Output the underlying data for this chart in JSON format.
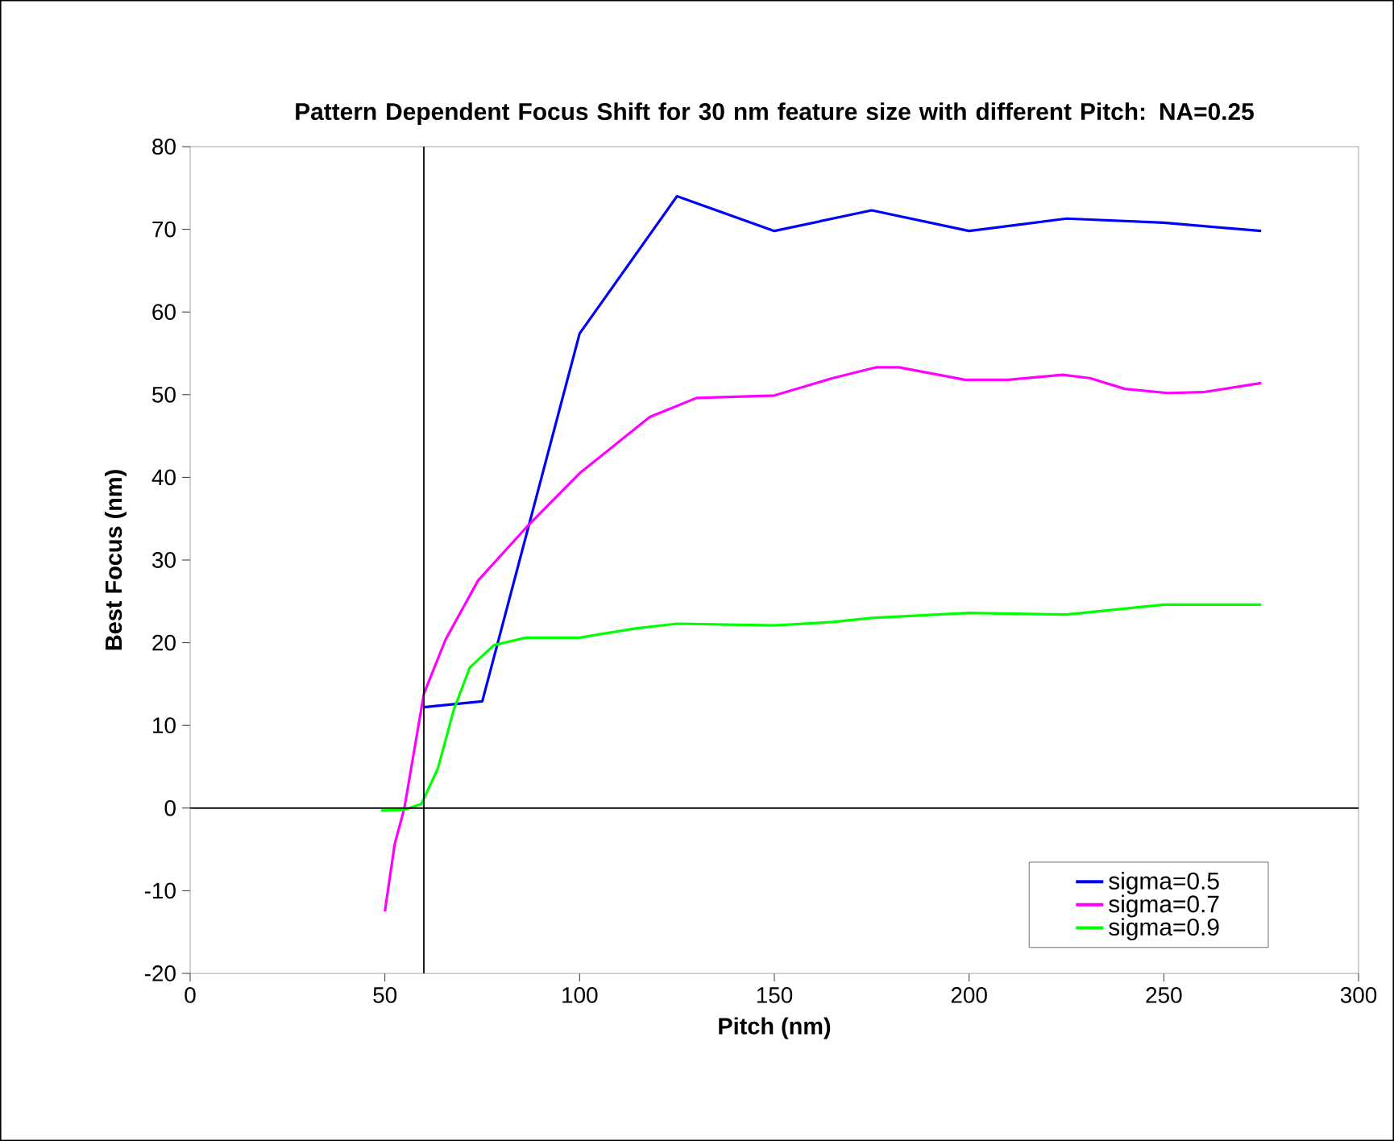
{
  "chart_data": {
    "type": "line",
    "title": "Pattern Dependent Focus Shift for 30 nm feature size with different Pitch: NA=0.25",
    "xlabel": "Pitch (nm)",
    "ylabel": "Best Focus (nm)",
    "xlim": [
      0,
      300
    ],
    "xticks": [
      0,
      50,
      100,
      150,
      200,
      250,
      300
    ],
    "ylim": [
      -20,
      80
    ],
    "yticks": [
      -20,
      -10,
      0,
      10,
      20,
      30,
      40,
      50,
      60,
      70,
      80
    ],
    "grid": false,
    "legend": "bottom right",
    "marker": "none",
    "line_style": "solid",
    "ref_lines": [
      {
        "axis": "x",
        "value": 60,
        "color": "#000000"
      },
      {
        "axis": "y",
        "value": 0,
        "color": "#000000"
      }
    ],
    "series": [
      {
        "name": "sigma=0.5",
        "color": "#0000ff",
        "x": [
          60,
          75,
          100,
          125,
          150,
          175,
          200,
          225,
          250,
          275
        ],
        "values": [
          12.2,
          12.9,
          57.4,
          74.0,
          69.8,
          72.3,
          69.8,
          71.3,
          70.8,
          69.8
        ]
      },
      {
        "name": "sigma=0.7",
        "color": "#ff00ff",
        "x": [
          50,
          52.5,
          55,
          60,
          65.6,
          73.9,
          86.4,
          100,
          118,
          130,
          150,
          165,
          176,
          182,
          199,
          210,
          224,
          231,
          240,
          251,
          260,
          275
        ],
        "values": [
          -12.5,
          -4.4,
          0,
          13.8,
          20.4,
          27.5,
          34,
          40.5,
          47.3,
          49.6,
          49.9,
          52,
          53.3,
          53.3,
          51.8,
          51.8,
          52.4,
          52,
          50.7,
          50.2,
          50.3,
          51.4
        ]
      },
      {
        "name": "sigma=0.9",
        "color": "#00ff00",
        "x": [
          49,
          55,
          59.4,
          63.6,
          67.7,
          71.8,
          78,
          86,
          100,
          114,
          125,
          150,
          165,
          175,
          200,
          225,
          250,
          275
        ],
        "values": [
          -0.3,
          -0.2,
          0.5,
          4.8,
          11.9,
          17,
          19.7,
          20.6,
          20.6,
          21.7,
          22.3,
          22.1,
          22.5,
          23,
          23.6,
          23.4,
          24.6,
          24.6
        ]
      }
    ]
  }
}
